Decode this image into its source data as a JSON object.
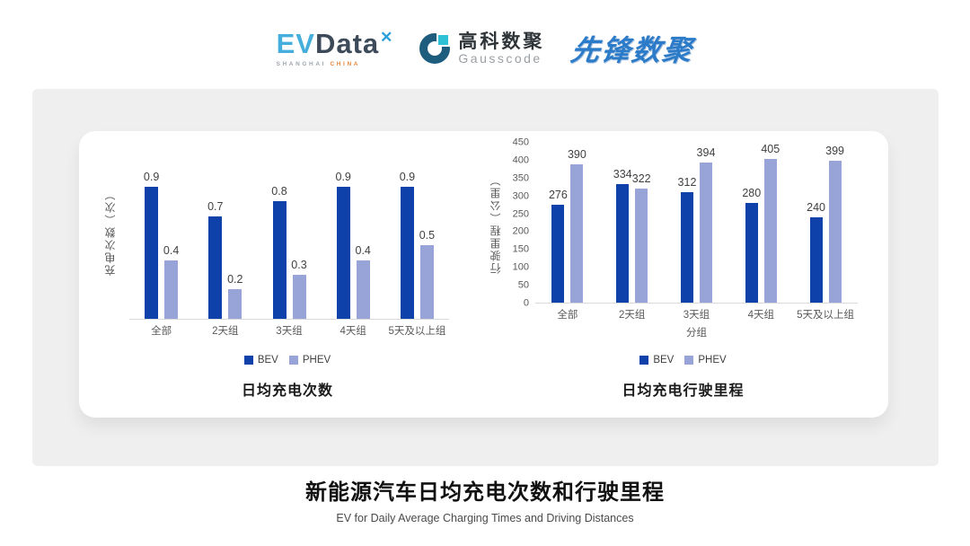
{
  "header": {
    "logos": {
      "evdata": {
        "ev": "EV",
        "data": "Data",
        "star": "✕",
        "sub_left": "SHANGHAI",
        "sub_right": "CHINA"
      },
      "gausscode": {
        "cn": "高科数聚",
        "en": "Gausscode"
      },
      "pioneer": {
        "text": "先锋数聚"
      }
    }
  },
  "colors": {
    "bev": "#0E41AA",
    "phev": "#98A4D8",
    "panel_gray": "#EFEFEF",
    "baseline": "#D9D9D9",
    "axis_text": "#595959",
    "value_text": "#3F3F3F"
  },
  "chart_data": [
    {
      "id": "daily-charging-times",
      "type": "bar",
      "title": "日均充电次数",
      "ylabel": "充电次数（次）",
      "xlabel": "",
      "categories": [
        "全部",
        "2天组",
        "3天组",
        "4天组",
        "5天及以上组"
      ],
      "series": [
        {
          "name": "BEV",
          "color": "#0E41AA",
          "values": [
            0.9,
            0.7,
            0.8,
            0.9,
            0.9
          ]
        },
        {
          "name": "PHEV",
          "color": "#98A4D8",
          "values": [
            0.4,
            0.2,
            0.3,
            0.4,
            0.5
          ]
        }
      ],
      "ylim": [
        0,
        1.2
      ],
      "yticks": [],
      "grid": false,
      "legend_position": "bottom",
      "data_labels": true
    },
    {
      "id": "daily-driving-distance",
      "type": "bar",
      "title": "日均充电行驶里程",
      "ylabel": "行驶里程（公里）",
      "xlabel": "分组",
      "categories": [
        "全部",
        "2天组",
        "3天组",
        "4天组",
        "5天及以上组"
      ],
      "series": [
        {
          "name": "BEV",
          "color": "#0E41AA",
          "values": [
            276,
            334,
            312,
            280,
            240
          ]
        },
        {
          "name": "PHEV",
          "color": "#98A4D8",
          "values": [
            390,
            322,
            394,
            405,
            399
          ]
        }
      ],
      "ylim": [
        0,
        450
      ],
      "yticks": [
        0,
        50,
        100,
        150,
        200,
        250,
        300,
        350,
        400,
        450
      ],
      "grid": false,
      "legend_position": "bottom",
      "data_labels": true
    }
  ],
  "footer": {
    "title": "新能源汽车日均充电次数和行驶里程",
    "subtitle": "EV for Daily Average Charging Times and Driving Distances"
  }
}
